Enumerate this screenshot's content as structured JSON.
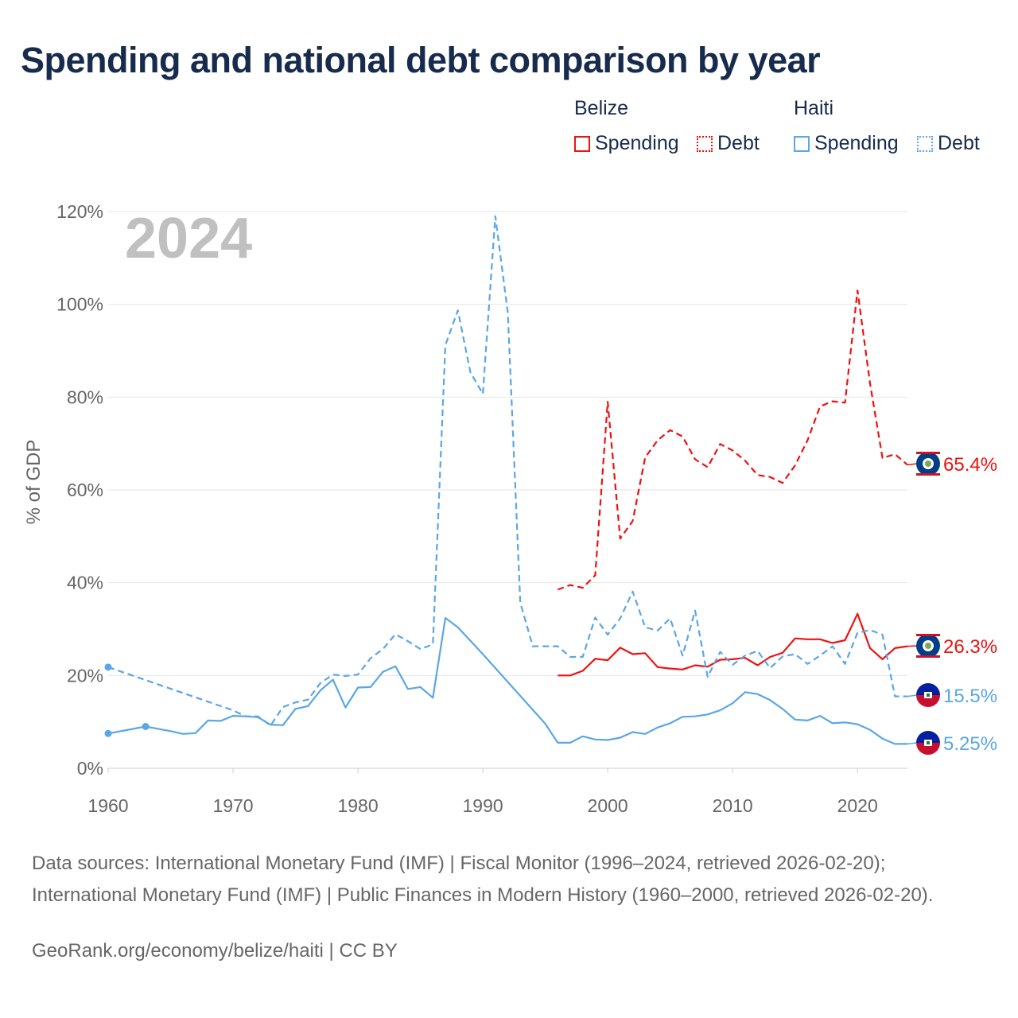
{
  "title": "Spending and national debt comparison by year",
  "colors": {
    "belize": "#ee1111",
    "haiti": "#5aa6e6",
    "text": "#172b4d",
    "axis": "#666666",
    "grid": "#e5e5e5",
    "year": "#c0c0c0"
  },
  "legend": {
    "groups": [
      {
        "name": "Belize",
        "items": [
          {
            "label": "Spending",
            "style": "solid"
          },
          {
            "label": "Debt",
            "style": "dotted"
          }
        ]
      },
      {
        "name": "Haiti",
        "items": [
          {
            "label": "Spending",
            "style": "solid"
          },
          {
            "label": "Debt",
            "style": "dotted"
          }
        ]
      }
    ]
  },
  "chart_data": {
    "type": "line",
    "year_label": "2024",
    "ylabel": "% of GDP",
    "xlim": [
      1960,
      2024
    ],
    "ylim": [
      0,
      120
    ],
    "x_ticks": [
      "1960",
      "1970",
      "1980",
      "1990",
      "2000",
      "2010",
      "2020"
    ],
    "y_ticks": [
      "0%",
      "20%",
      "40%",
      "60%",
      "80%",
      "100%",
      "120%"
    ],
    "series": [
      {
        "id": "belize-debt",
        "name": "Belize Debt",
        "country": "Belize",
        "metric": "Debt",
        "dash": "dashed",
        "color": "#ee1111",
        "end_label": "65.4%",
        "flag": "belize",
        "points": [
          [
            1996,
            38.5
          ],
          [
            1997,
            39.5
          ],
          [
            1998,
            38.9
          ],
          [
            1999,
            41.6
          ],
          [
            2000,
            79.0
          ],
          [
            2001,
            49.5
          ],
          [
            2002,
            53.3
          ],
          [
            2003,
            67.0
          ],
          [
            2004,
            70.7
          ],
          [
            2005,
            72.9
          ],
          [
            2006,
            71.5
          ],
          [
            2007,
            66.6
          ],
          [
            2008,
            64.9
          ],
          [
            2009,
            69.9
          ],
          [
            2010,
            68.5
          ],
          [
            2011,
            66.3
          ],
          [
            2012,
            63.2
          ],
          [
            2013,
            62.8
          ],
          [
            2014,
            61.5
          ],
          [
            2015,
            65.3
          ],
          [
            2016,
            70.7
          ],
          [
            2017,
            78.0
          ],
          [
            2018,
            79.1
          ],
          [
            2019,
            78.8
          ],
          [
            2020,
            103.0
          ],
          [
            2021,
            83.0
          ],
          [
            2022,
            66.9
          ],
          [
            2023,
            67.7
          ],
          [
            2024,
            65.4
          ]
        ]
      },
      {
        "id": "belize-spending",
        "name": "Belize Spending",
        "country": "Belize",
        "metric": "Spending",
        "dash": "solid",
        "color": "#ee1111",
        "end_label": "26.3%",
        "flag": "belize",
        "points": [
          [
            1996,
            20.0
          ],
          [
            1997,
            20.0
          ],
          [
            1998,
            21.0
          ],
          [
            1999,
            23.6
          ],
          [
            2000,
            23.3
          ],
          [
            2001,
            26.0
          ],
          [
            2002,
            24.6
          ],
          [
            2003,
            24.8
          ],
          [
            2004,
            21.8
          ],
          [
            2005,
            21.5
          ],
          [
            2006,
            21.3
          ],
          [
            2007,
            22.2
          ],
          [
            2008,
            21.9
          ],
          [
            2009,
            23.4
          ],
          [
            2010,
            23.5
          ],
          [
            2011,
            23.8
          ],
          [
            2012,
            22.2
          ],
          [
            2013,
            24.0
          ],
          [
            2014,
            24.9
          ],
          [
            2015,
            28.0
          ],
          [
            2016,
            27.8
          ],
          [
            2017,
            27.8
          ],
          [
            2018,
            27.0
          ],
          [
            2019,
            27.6
          ],
          [
            2020,
            33.3
          ],
          [
            2021,
            25.9
          ],
          [
            2022,
            23.5
          ],
          [
            2023,
            25.9
          ],
          [
            2024,
            26.3
          ]
        ]
      },
      {
        "id": "haiti-debt",
        "name": "Haiti Debt",
        "country": "Haiti",
        "metric": "Debt",
        "dash": "dashed",
        "color": "#5aa6e6",
        "end_label": "15.5%",
        "flag": "haiti",
        "points": [
          [
            1960,
            21.8
          ],
          [
            1970,
            12.5
          ],
          [
            1971,
            11.2
          ],
          [
            1972,
            11.2
          ],
          [
            1973,
            9.2
          ],
          [
            1974,
            13.2
          ],
          [
            1975,
            14.2
          ],
          [
            1976,
            14.8
          ],
          [
            1977,
            18.4
          ],
          [
            1978,
            20.2
          ],
          [
            1979,
            19.9
          ],
          [
            1980,
            20.2
          ],
          [
            1981,
            23.7
          ],
          [
            1982,
            25.7
          ],
          [
            1983,
            28.9
          ],
          [
            1984,
            27.4
          ],
          [
            1985,
            25.7
          ],
          [
            1986,
            26.7
          ],
          [
            1987,
            91.2
          ],
          [
            1988,
            98.7
          ],
          [
            1989,
            85.4
          ],
          [
            1990,
            80.7
          ],
          [
            1991,
            119.0
          ],
          [
            1992,
            98.2
          ],
          [
            1993,
            35.7
          ],
          [
            1994,
            26.3
          ],
          [
            1995,
            26.3
          ],
          [
            1996,
            26.3
          ],
          [
            1997,
            24.0
          ],
          [
            1998,
            24.0
          ],
          [
            1999,
            32.5
          ],
          [
            2000,
            28.8
          ],
          [
            2001,
            32.3
          ],
          [
            2002,
            38.1
          ],
          [
            2003,
            30.4
          ],
          [
            2004,
            29.7
          ],
          [
            2005,
            32.3
          ],
          [
            2006,
            24.3
          ],
          [
            2007,
            34.0
          ],
          [
            2008,
            19.7
          ],
          [
            2009,
            25.1
          ],
          [
            2010,
            22.3
          ],
          [
            2011,
            24.3
          ],
          [
            2012,
            25.3
          ],
          [
            2013,
            21.6
          ],
          [
            2014,
            24.1
          ],
          [
            2015,
            24.6
          ],
          [
            2016,
            22.5
          ],
          [
            2017,
            24.3
          ],
          [
            2018,
            26.3
          ],
          [
            2019,
            22.5
          ],
          [
            2020,
            29.2
          ],
          [
            2021,
            29.8
          ],
          [
            2022,
            28.8
          ],
          [
            2023,
            15.5
          ],
          [
            2024,
            15.5
          ]
        ]
      },
      {
        "id": "haiti-spending",
        "name": "Haiti Spending",
        "country": "Haiti",
        "metric": "Spending",
        "dash": "solid",
        "color": "#5aa6e6",
        "end_label": "5.25%",
        "flag": "haiti",
        "points": [
          [
            1960,
            7.5
          ],
          [
            1963,
            9.0
          ],
          [
            1964,
            8.5
          ],
          [
            1965,
            8.0
          ],
          [
            1966,
            7.4
          ],
          [
            1967,
            7.6
          ],
          [
            1968,
            10.3
          ],
          [
            1969,
            10.2
          ],
          [
            1970,
            11.3
          ],
          [
            1971,
            11.2
          ],
          [
            1972,
            11.0
          ],
          [
            1973,
            9.4
          ],
          [
            1974,
            9.3
          ],
          [
            1975,
            12.8
          ],
          [
            1976,
            13.4
          ],
          [
            1977,
            16.8
          ],
          [
            1978,
            19.1
          ],
          [
            1979,
            13.1
          ],
          [
            1980,
            17.4
          ],
          [
            1981,
            17.5
          ],
          [
            1982,
            20.8
          ],
          [
            1983,
            22.0
          ],
          [
            1984,
            17.1
          ],
          [
            1985,
            17.5
          ],
          [
            1986,
            15.2
          ],
          [
            1987,
            32.4
          ],
          [
            1988,
            30.4
          ],
          [
            1989,
            27.5
          ],
          [
            1990,
            24.6
          ],
          [
            1991,
            21.6
          ],
          [
            1992,
            18.6
          ],
          [
            1993,
            15.6
          ],
          [
            1994,
            12.6
          ],
          [
            1995,
            9.6
          ],
          [
            1996,
            5.5
          ],
          [
            1997,
            5.5
          ],
          [
            1998,
            6.9
          ],
          [
            1999,
            6.2
          ],
          [
            2000,
            6.1
          ],
          [
            2001,
            6.6
          ],
          [
            2002,
            7.8
          ],
          [
            2003,
            7.4
          ],
          [
            2004,
            8.8
          ],
          [
            2005,
            9.7
          ],
          [
            2006,
            11.1
          ],
          [
            2007,
            11.2
          ],
          [
            2008,
            11.6
          ],
          [
            2009,
            12.5
          ],
          [
            2010,
            14.0
          ],
          [
            2011,
            16.4
          ],
          [
            2012,
            16.0
          ],
          [
            2013,
            14.7
          ],
          [
            2014,
            12.8
          ],
          [
            2015,
            10.5
          ],
          [
            2016,
            10.3
          ],
          [
            2017,
            11.3
          ],
          [
            2018,
            9.7
          ],
          [
            2019,
            9.9
          ],
          [
            2020,
            9.5
          ],
          [
            2021,
            8.3
          ],
          [
            2022,
            6.4
          ],
          [
            2023,
            5.25
          ],
          [
            2024,
            5.25
          ]
        ]
      }
    ],
    "markers": [
      {
        "series": "haiti-debt",
        "x": 1960,
        "y": 21.8
      },
      {
        "series": "haiti-spending",
        "x": 1960,
        "y": 7.5
      },
      {
        "series": "haiti-spending",
        "x": 1963,
        "y": 9.0
      }
    ]
  },
  "footer": {
    "sources": "Data sources: International Monetary Fund (IMF) | Fiscal Monitor (1996–2024, retrieved 2026-02-20); International Monetary Fund (IMF) | Public Finances in Modern History (1960–2000, retrieved 2026-02-20).",
    "credit": "GeoRank.org/economy/belize/haiti | CC BY"
  }
}
